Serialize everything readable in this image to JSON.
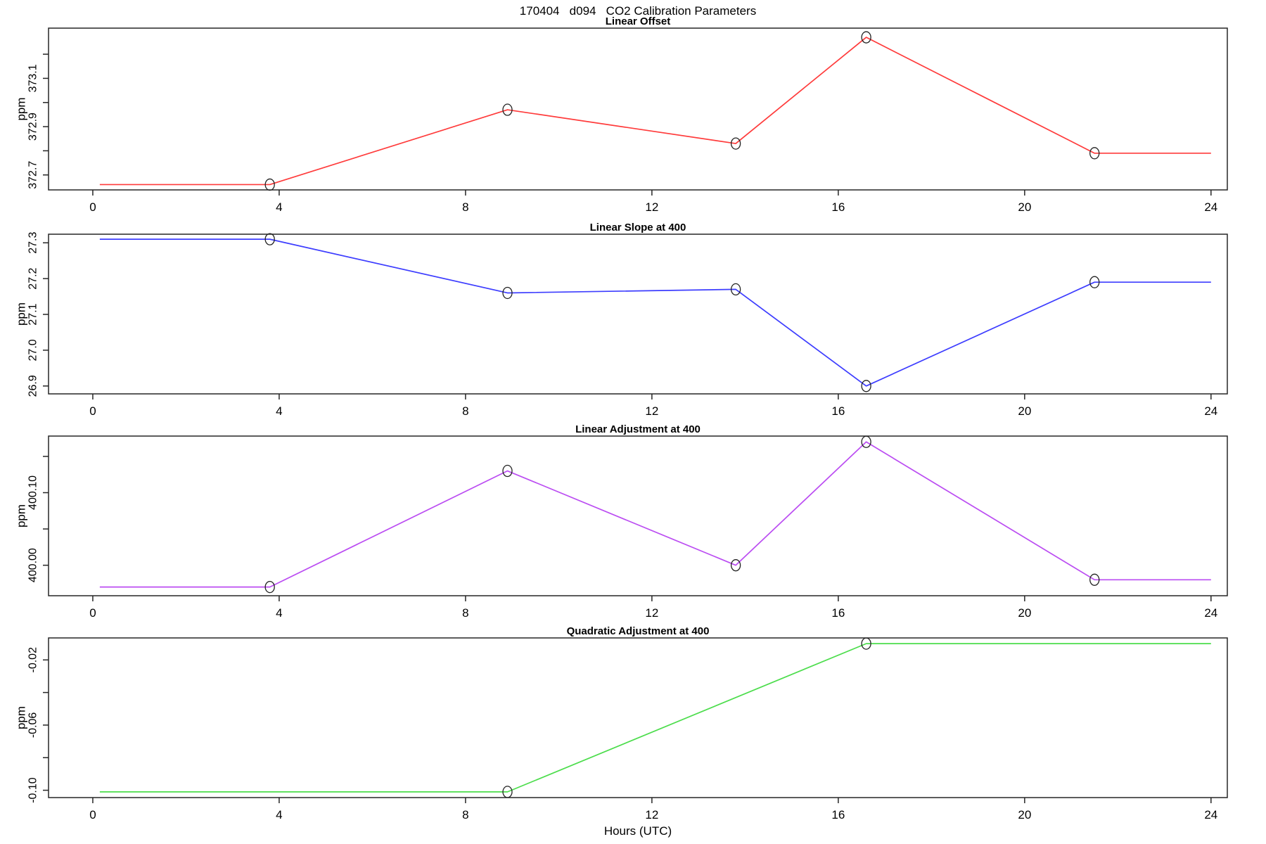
{
  "page": {
    "title": "170404   d094   CO2 Calibration Parameters"
  },
  "axis": {
    "xlabel": "Hours (UTC)",
    "ylabel": "ppm"
  },
  "chart_data": [
    {
      "type": "line",
      "title": "Linear Offset",
      "ylabel": "ppm",
      "color": "#ff3b3b",
      "x": [
        0.15,
        3.8,
        8.9,
        13.8,
        16.6,
        21.5,
        24.0
      ],
      "y": [
        372.66,
        372.66,
        372.97,
        372.83,
        373.27,
        372.79,
        372.79
      ],
      "marker_indices": [
        1,
        2,
        3,
        4,
        5
      ],
      "marker_style": "open-circle",
      "xlim": [
        -0.95,
        24.35
      ],
      "ylim": [
        372.638,
        373.308
      ],
      "xticks": [
        0,
        4,
        8,
        12,
        16,
        20,
        24
      ],
      "xtick_labels": [
        "0",
        "4",
        "8",
        "12",
        "16",
        "20",
        "24"
      ],
      "yticks": [
        372.7,
        372.8,
        372.9,
        373.0,
        373.1,
        373.2
      ],
      "ytick_labels": [
        "372.7",
        "",
        "372.9",
        "",
        "373.1",
        ""
      ],
      "grid": false
    },
    {
      "type": "line",
      "title": "Linear Slope at 400",
      "ylabel": "ppm",
      "color": "#3d3dff",
      "x": [
        0.15,
        3.8,
        8.9,
        13.8,
        16.6,
        21.5,
        24.0
      ],
      "y": [
        27.31,
        27.31,
        27.16,
        27.17,
        26.9,
        27.19,
        27.19
      ],
      "marker_indices": [
        1,
        2,
        3,
        4,
        5
      ],
      "marker_style": "open-circle",
      "xlim": [
        -0.95,
        24.35
      ],
      "ylim": [
        26.878,
        27.324
      ],
      "xticks": [
        0,
        4,
        8,
        12,
        16,
        20,
        24
      ],
      "xtick_labels": [
        "0",
        "4",
        "8",
        "12",
        "16",
        "20",
        "24"
      ],
      "yticks": [
        26.9,
        27.0,
        27.1,
        27.2,
        27.3
      ],
      "ytick_labels": [
        "26.9",
        "27.0",
        "27.1",
        "27.2",
        "27.3"
      ],
      "grid": false
    },
    {
      "type": "line",
      "title": "Linear Adjustment at 400",
      "ylabel": "ppm",
      "color": "#bb4df2",
      "x": [
        0.15,
        3.8,
        8.9,
        13.8,
        16.6,
        21.5,
        24.0
      ],
      "y": [
        399.97,
        399.97,
        400.13,
        400.0,
        400.17,
        399.98,
        399.98
      ],
      "marker_indices": [
        1,
        2,
        3,
        4,
        5
      ],
      "marker_style": "open-circle",
      "xlim": [
        -0.95,
        24.35
      ],
      "ylim": [
        399.958,
        400.178
      ],
      "xticks": [
        0,
        4,
        8,
        12,
        16,
        20,
        24
      ],
      "xtick_labels": [
        "0",
        "4",
        "8",
        "12",
        "16",
        "20",
        "24"
      ],
      "yticks": [
        400.0,
        400.05,
        400.1,
        400.15
      ],
      "ytick_labels": [
        "400.00",
        "",
        "400.10",
        ""
      ],
      "grid": false
    },
    {
      "type": "line",
      "title": "Quadratic Adjustment at 400",
      "ylabel": "ppm",
      "color": "#4cdd4c",
      "x": [
        0.15,
        8.9,
        16.6,
        24.0
      ],
      "y": [
        -0.101,
        -0.101,
        -0.01,
        -0.01
      ],
      "marker_indices": [
        1,
        2
      ],
      "marker_style": "open-circle",
      "xlim": [
        -0.95,
        24.35
      ],
      "ylim": [
        -0.1045,
        -0.0065
      ],
      "xticks": [
        0,
        4,
        8,
        12,
        16,
        20,
        24
      ],
      "xtick_labels": [
        "0",
        "4",
        "8",
        "12",
        "16",
        "20",
        "24"
      ],
      "yticks": [
        -0.1,
        -0.08,
        -0.06,
        -0.04,
        -0.02
      ],
      "ytick_labels": [
        "-0.10",
        "",
        "-0.06",
        "",
        "-0.02"
      ],
      "grid": false
    }
  ]
}
